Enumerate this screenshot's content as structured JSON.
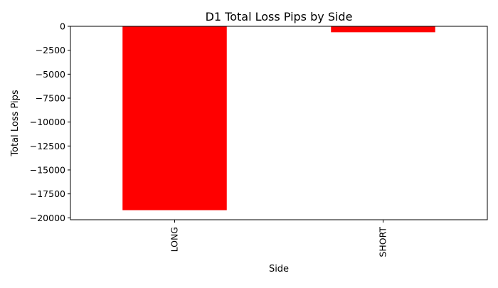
{
  "chart_data": {
    "type": "bar",
    "title": "D1 Total Loss Pips by Side",
    "xlabel": "Side",
    "ylabel": "Total Loss Pips",
    "categories": [
      "LONG",
      "SHORT"
    ],
    "values": [
      -19200,
      -620
    ],
    "ylim": [
      -20200,
      0
    ],
    "yticks": [
      0,
      -2500,
      -5000,
      -7500,
      -10000,
      -12500,
      -15000,
      -17500,
      -20000
    ],
    "ytick_labels": [
      "0",
      "−2500",
      "−5000",
      "−7500",
      "−10000",
      "−12500",
      "−15000",
      "−17500",
      "−20000"
    ],
    "bar_color": "#ff0000",
    "grid": false,
    "legend": "none"
  }
}
